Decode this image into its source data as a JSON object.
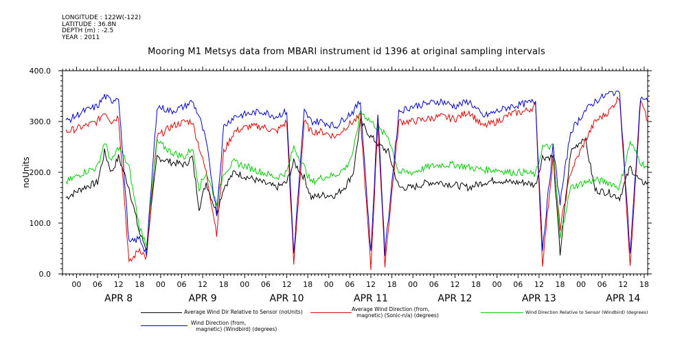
{
  "meta": {
    "lines": [
      "LONGITUDE : 122W(-122)",
      "LATITUDE : 36.8N",
      "DEPTH (m) : -2.5",
      "YEAR : 2011"
    ]
  },
  "chart_data": {
    "type": "line",
    "title": "Mooring M1 Metsys data from MBARI instrument id 1396 at original sampling intervals",
    "xlabel": "",
    "ylabel": "noUnits",
    "ylim": [
      0,
      400
    ],
    "y_ticks": [
      0,
      100,
      200,
      300,
      400
    ],
    "x_range_hours": [
      -4,
      163
    ],
    "x_tick_labels": [
      "00",
      "06",
      "12",
      "18",
      "00",
      "06",
      "12",
      "18",
      "00",
      "06",
      "12",
      "18",
      "00",
      "06",
      "12",
      "18",
      "00",
      "06",
      "12",
      "18",
      "00",
      "06",
      "12",
      "18",
      "00",
      "06",
      "12",
      "18"
    ],
    "x_tick_hours": [
      0,
      6,
      12,
      18,
      24,
      30,
      36,
      42,
      48,
      54,
      60,
      66,
      72,
      78,
      84,
      90,
      96,
      102,
      108,
      114,
      120,
      126,
      132,
      138,
      144,
      150,
      156,
      162
    ],
    "day_labels": [
      {
        "label": "APR  8",
        "hour": 12
      },
      {
        "label": "APR  9",
        "hour": 36
      },
      {
        "label": "APR 10",
        "hour": 60
      },
      {
        "label": "APR 11",
        "hour": 84
      },
      {
        "label": "APR 12",
        "hour": 108
      },
      {
        "label": "APR 13",
        "hour": 132
      },
      {
        "label": "APR 14",
        "hour": 156
      }
    ],
    "grid": false,
    "legend_position": "bottom",
    "series": [
      {
        "name": "Average Wind Dir Relative to Sensor (noUnits)",
        "color": "#000000",
        "points": [
          [
            -3,
            150
          ],
          [
            2,
            170
          ],
          [
            6,
            180
          ],
          [
            8,
            240
          ],
          [
            10,
            200
          ],
          [
            12,
            230
          ],
          [
            15,
            170
          ],
          [
            18,
            80
          ],
          [
            20,
            50
          ],
          [
            23,
            230
          ],
          [
            27,
            220
          ],
          [
            31,
            215
          ],
          [
            33,
            230
          ],
          [
            35,
            130
          ],
          [
            37,
            180
          ],
          [
            40,
            120
          ],
          [
            42,
            170
          ],
          [
            45,
            200
          ],
          [
            49,
            190
          ],
          [
            53,
            180
          ],
          [
            57,
            170
          ],
          [
            60,
            180
          ],
          [
            62,
            220
          ],
          [
            65,
            190
          ],
          [
            67,
            150
          ],
          [
            70,
            155
          ],
          [
            74,
            155
          ],
          [
            77,
            175
          ],
          [
            79,
            200
          ],
          [
            81,
            300
          ],
          [
            84,
            270
          ],
          [
            87,
            250
          ],
          [
            89,
            240
          ],
          [
            92,
            170
          ],
          [
            96,
            170
          ],
          [
            100,
            180
          ],
          [
            104,
            180
          ],
          [
            108,
            175
          ],
          [
            112,
            170
          ],
          [
            116,
            180
          ],
          [
            120,
            185
          ],
          [
            124,
            180
          ],
          [
            128,
            180
          ],
          [
            131,
            175
          ],
          [
            133,
            230
          ],
          [
            136,
            230
          ],
          [
            138,
            40
          ],
          [
            141,
            240
          ],
          [
            145,
            270
          ],
          [
            148,
            165
          ],
          [
            152,
            160
          ],
          [
            155,
            150
          ],
          [
            158,
            210
          ],
          [
            161,
            180
          ],
          [
            163,
            180
          ]
        ]
      },
      {
        "name": "Average Wind Direction (from, magnetic) (Sonic-n/a) (degrees)",
        "color": "#dd0000",
        "points": [
          [
            -3,
            280
          ],
          [
            2,
            290
          ],
          [
            6,
            300
          ],
          [
            8,
            320
          ],
          [
            10,
            300
          ],
          [
            12,
            310
          ],
          [
            15,
            20
          ],
          [
            18,
            50
          ],
          [
            20,
            30
          ],
          [
            23,
            270
          ],
          [
            27,
            290
          ],
          [
            31,
            300
          ],
          [
            33,
            300
          ],
          [
            35,
            250
          ],
          [
            37,
            200
          ],
          [
            40,
            80
          ],
          [
            42,
            240
          ],
          [
            45,
            280
          ],
          [
            49,
            290
          ],
          [
            53,
            290
          ],
          [
            57,
            280
          ],
          [
            60,
            300
          ],
          [
            62,
            20
          ],
          [
            65,
            300
          ],
          [
            67,
            280
          ],
          [
            70,
            280
          ],
          [
            74,
            270
          ],
          [
            77,
            290
          ],
          [
            79,
            300
          ],
          [
            81,
            310
          ],
          [
            84,
            10
          ],
          [
            86,
            300
          ],
          [
            88,
            20
          ],
          [
            92,
            300
          ],
          [
            96,
            300
          ],
          [
            100,
            305
          ],
          [
            104,
            310
          ],
          [
            108,
            305
          ],
          [
            112,
            320
          ],
          [
            116,
            290
          ],
          [
            120,
            300
          ],
          [
            124,
            315
          ],
          [
            128,
            320
          ],
          [
            131,
            330
          ],
          [
            133,
            20
          ],
          [
            136,
            230
          ],
          [
            138,
            90
          ],
          [
            141,
            200
          ],
          [
            145,
            260
          ],
          [
            148,
            300
          ],
          [
            152,
            320
          ],
          [
            155,
            350
          ],
          [
            158,
            20
          ],
          [
            161,
            340
          ],
          [
            163,
            300
          ]
        ]
      },
      {
        "name": "Wind Direction Relative to Sensor (Windbird) (degrees)",
        "color": "#00cc00",
        "points": [
          [
            -3,
            180
          ],
          [
            2,
            200
          ],
          [
            6,
            210
          ],
          [
            8,
            260
          ],
          [
            10,
            220
          ],
          [
            12,
            250
          ],
          [
            15,
            210
          ],
          [
            18,
            90
          ],
          [
            20,
            60
          ],
          [
            23,
            260
          ],
          [
            27,
            240
          ],
          [
            31,
            230
          ],
          [
            33,
            250
          ],
          [
            35,
            170
          ],
          [
            37,
            200
          ],
          [
            40,
            140
          ],
          [
            42,
            200
          ],
          [
            45,
            220
          ],
          [
            49,
            210
          ],
          [
            53,
            200
          ],
          [
            57,
            190
          ],
          [
            60,
            200
          ],
          [
            62,
            250
          ],
          [
            65,
            210
          ],
          [
            67,
            180
          ],
          [
            70,
            190
          ],
          [
            74,
            195
          ],
          [
            77,
            210
          ],
          [
            79,
            240
          ],
          [
            81,
            320
          ],
          [
            84,
            300
          ],
          [
            87,
            280
          ],
          [
            89,
            270
          ],
          [
            92,
            200
          ],
          [
            96,
            200
          ],
          [
            100,
            210
          ],
          [
            104,
            215
          ],
          [
            108,
            215
          ],
          [
            112,
            210
          ],
          [
            116,
            205
          ],
          [
            120,
            205
          ],
          [
            124,
            200
          ],
          [
            128,
            200
          ],
          [
            131,
            195
          ],
          [
            133,
            250
          ],
          [
            136,
            250
          ],
          [
            138,
            70
          ],
          [
            141,
            170
          ],
          [
            145,
            180
          ],
          [
            148,
            185
          ],
          [
            152,
            180
          ],
          [
            155,
            170
          ],
          [
            158,
            260
          ],
          [
            161,
            220
          ],
          [
            163,
            210
          ]
        ]
      },
      {
        "name": "Wind Direction (from, magnetic) (Windbird) (degrees)",
        "color": "#0000cc",
        "points": [
          [
            -3,
            300
          ],
          [
            2,
            320
          ],
          [
            6,
            330
          ],
          [
            8,
            350
          ],
          [
            10,
            340
          ],
          [
            12,
            350
          ],
          [
            15,
            60
          ],
          [
            18,
            70
          ],
          [
            20,
            40
          ],
          [
            23,
            330
          ],
          [
            27,
            320
          ],
          [
            31,
            330
          ],
          [
            33,
            340
          ],
          [
            35,
            310
          ],
          [
            37,
            260
          ],
          [
            40,
            120
          ],
          [
            42,
            290
          ],
          [
            45,
            310
          ],
          [
            49,
            315
          ],
          [
            53,
            320
          ],
          [
            57,
            310
          ],
          [
            60,
            320
          ],
          [
            62,
            40
          ],
          [
            65,
            320
          ],
          [
            67,
            300
          ],
          [
            70,
            300
          ],
          [
            74,
            290
          ],
          [
            77,
            310
          ],
          [
            79,
            320
          ],
          [
            81,
            340
          ],
          [
            84,
            40
          ],
          [
            86,
            320
          ],
          [
            88,
            40
          ],
          [
            92,
            320
          ],
          [
            96,
            330
          ],
          [
            100,
            335
          ],
          [
            104,
            340
          ],
          [
            108,
            330
          ],
          [
            112,
            340
          ],
          [
            116,
            310
          ],
          [
            120,
            320
          ],
          [
            124,
            330
          ],
          [
            128,
            335
          ],
          [
            131,
            340
          ],
          [
            133,
            50
          ],
          [
            136,
            250
          ],
          [
            138,
            140
          ],
          [
            141,
            280
          ],
          [
            145,
            320
          ],
          [
            148,
            340
          ],
          [
            152,
            355
          ],
          [
            155,
            360
          ],
          [
            158,
            40
          ],
          [
            161,
            350
          ],
          [
            163,
            340
          ]
        ]
      }
    ]
  },
  "legend": {
    "items": [
      {
        "label": "Average Wind Dir Relative to Sensor (noUnits)",
        "color": "#000000"
      },
      {
        "label": "Average Wind Direction (from,\n   magnetic) (Sonic-n/a) (degrees)",
        "color": "#dd0000"
      },
      {
        "label": "Wind Direction Relative to Sensor (Windbird) (degrees)",
        "color": "#00cc00"
      },
      {
        "label": "Wind Direction (from,\n   magnetic) (Windbird) (degrees)",
        "color": "#0000cc"
      }
    ]
  }
}
